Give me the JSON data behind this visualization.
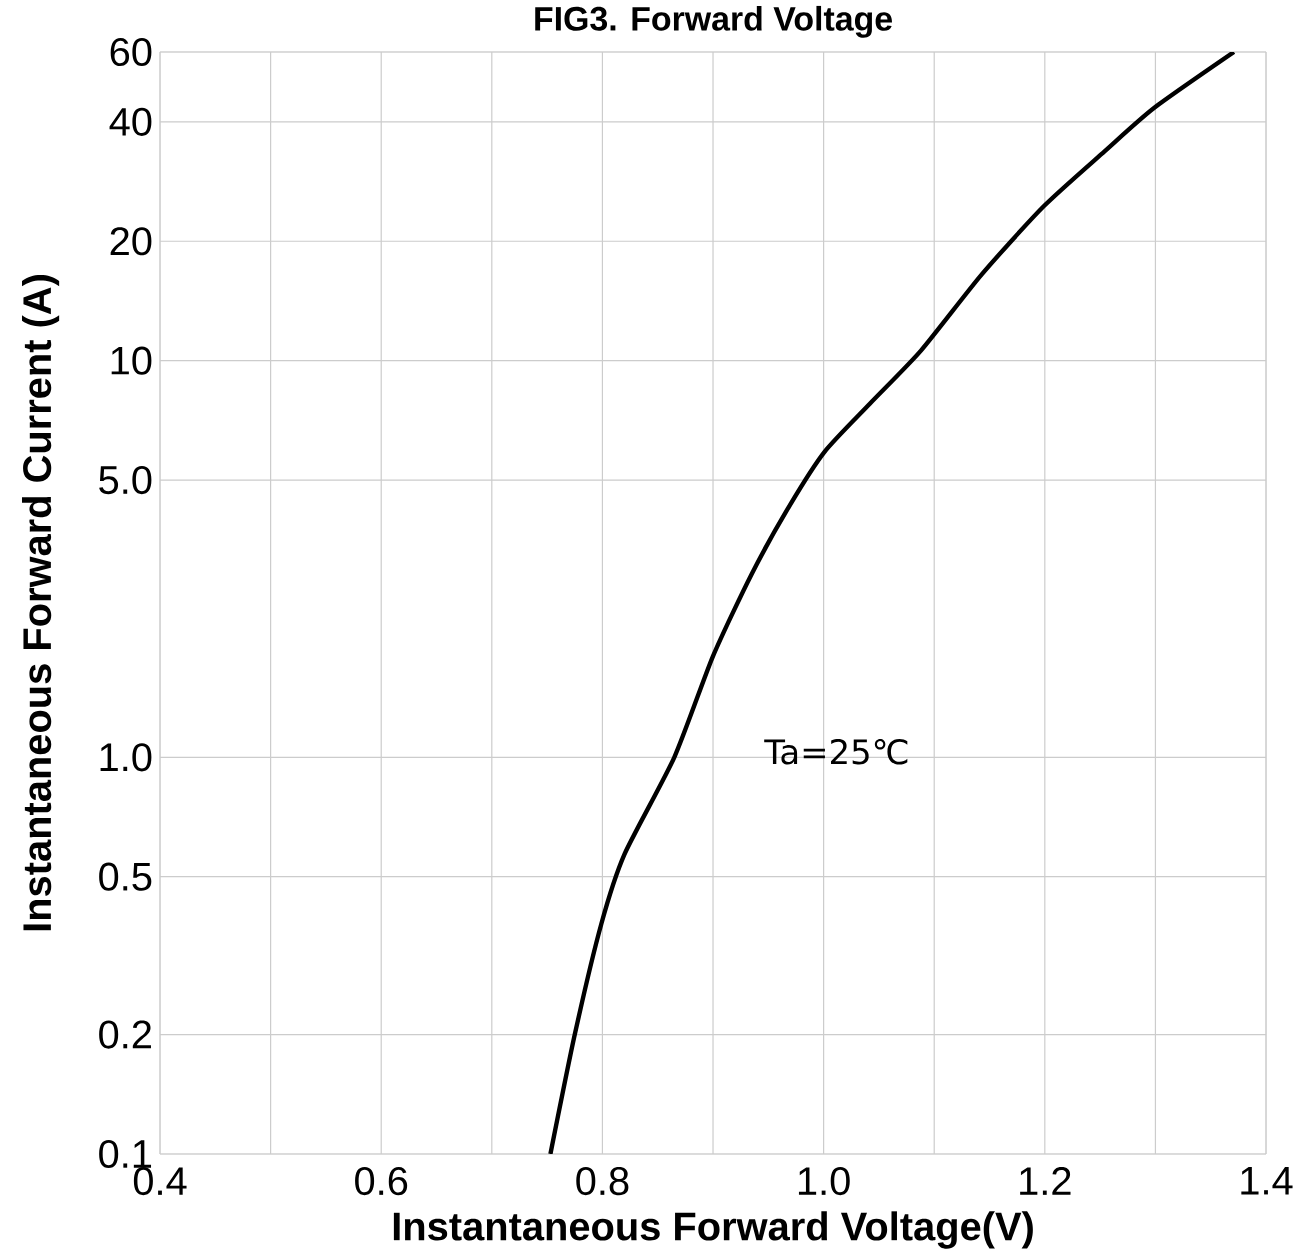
{
  "chart_data": {
    "type": "line",
    "title": "FIG3. Forward Voltage",
    "xlabel": "Instantaneous Forward Voltage(V)",
    "ylabel": "Instantaneous Forward Current (A)",
    "x": [
      0.753,
      0.775,
      0.799,
      0.82,
      0.865,
      0.9,
      0.935,
      0.969,
      1.001,
      1.042,
      1.088,
      1.143,
      1.199,
      1.254,
      1.299,
      1.371
    ],
    "series": [
      {
        "color": "#000000",
        "values": [
          0.1,
          0.2,
          0.38,
          0.57,
          1.0,
          1.8,
          2.9,
          4.3,
          5.9,
          7.8,
          10.6,
          16.5,
          24.5,
          33.7,
          43.4,
          60
        ]
      }
    ],
    "annotations": [
      "Ta=25℃"
    ],
    "log": "y",
    "grid": true,
    "marker": "none",
    "line_style": "solid",
    "xlim": [
      0.4,
      1.4
    ],
    "xticks": [
      {
        "value": 0.4,
        "label": "0.4"
      },
      {
        "value": 0.6,
        "label": "0.6"
      },
      {
        "value": 0.8,
        "label": "0.8"
      },
      {
        "value": 1.0,
        "label": "1.0"
      },
      {
        "value": 1.2,
        "label": "1.2"
      },
      {
        "value": 1.4,
        "label": "1.4"
      }
    ],
    "ylim": [
      0.1,
      60
    ],
    "yticks": [
      0.1,
      0.2,
      0.5,
      {
        "value": 1,
        "label": "1.0"
      },
      {
        "value": 5,
        "label": "5.0"
      },
      10,
      20,
      40,
      60
    ]
  }
}
